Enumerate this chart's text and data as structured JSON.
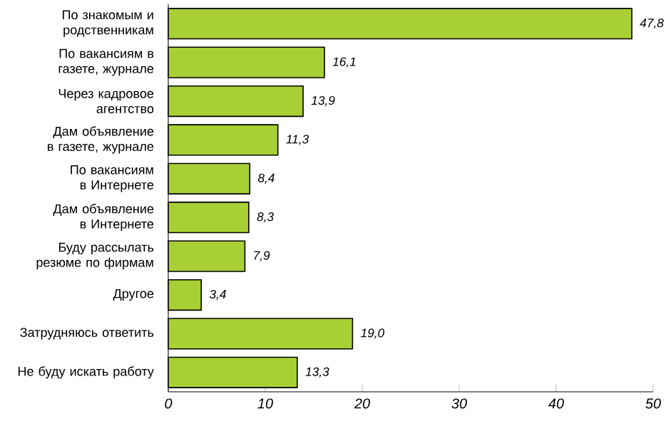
{
  "chart_data": {
    "type": "bar",
    "orientation": "horizontal",
    "categories": [
      "По знакомым и родственникам",
      "По вакансиям в газете, журнале",
      "Через кадровое агентство",
      "Дам объявление в газете, журнале",
      "По вакансиям в Интернете",
      "Дам объявление в Интернете",
      "Буду рассылать резюме по фирмам",
      "Другое",
      "Затрудняюсь ответить",
      "Не буду искать работу"
    ],
    "values": [
      47.8,
      16.1,
      13.9,
      11.3,
      8.4,
      8.3,
      7.9,
      3.4,
      19.0,
      13.3
    ],
    "value_labels": [
      "47,8",
      "16,1",
      "13,9",
      "11,3",
      "8,4",
      "8,3",
      "7,9",
      "3,4",
      "19,0",
      "13,3"
    ],
    "color": "#a8d034",
    "xlim": [
      0,
      50
    ],
    "xticks": [
      0,
      10,
      20,
      30,
      40,
      50
    ],
    "grid": false
  }
}
